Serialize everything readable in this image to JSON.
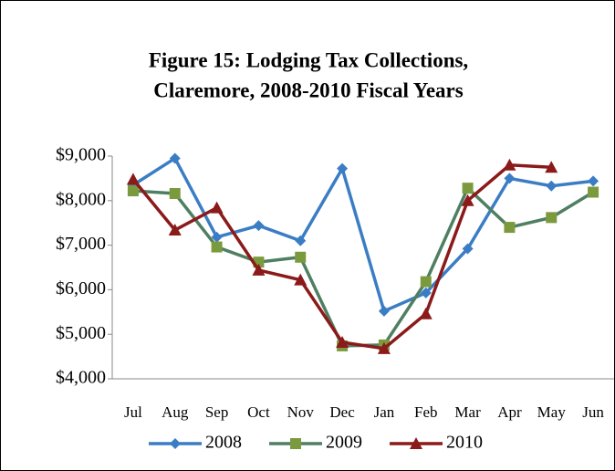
{
  "chart_data": {
    "type": "line",
    "title": "Figure 15: Lodging Tax Collections,",
    "subtitle": "Claremore, 2008-2010 Fiscal Years",
    "categories": [
      "Jul",
      "Aug",
      "Sep",
      "Oct",
      "Nov",
      "Dec",
      "Jan",
      "Feb",
      "Mar",
      "Apr",
      "May",
      "Jun"
    ],
    "series": [
      {
        "name": "2008",
        "color": "#3b7dc4",
        "marker_color": "#3b7dc4",
        "marker": "diamond",
        "values": [
          8350,
          8950,
          7180,
          7440,
          7100,
          8720,
          5520,
          5930,
          6920,
          8500,
          8330,
          8440
        ]
      },
      {
        "name": "2009",
        "color": "#4f7f62",
        "marker_color": "#7b9a3d",
        "marker": "square",
        "values": [
          8220,
          8160,
          6960,
          6620,
          6730,
          4740,
          4760,
          6180,
          8280,
          7400,
          7620,
          8190
        ]
      },
      {
        "name": "2010",
        "color": "#8b1a1a",
        "marker_color": "#8b1a1a",
        "marker": "triangle",
        "values": [
          8480,
          7340,
          7840,
          6440,
          6220,
          4820,
          4680,
          5460,
          8000,
          8800,
          8750,
          null
        ]
      }
    ],
    "ylim": [
      4000,
      9000
    ],
    "yticks": [
      {
        "value": 4000,
        "label": "$4,000"
      },
      {
        "value": 5000,
        "label": "$5,000"
      },
      {
        "value": 6000,
        "label": "$6,000"
      },
      {
        "value": 7000,
        "label": "$7,000"
      },
      {
        "value": 8000,
        "label": "$8,000"
      },
      {
        "value": 9000,
        "label": "$9,000"
      }
    ],
    "grid": false,
    "legend": "bottom"
  }
}
